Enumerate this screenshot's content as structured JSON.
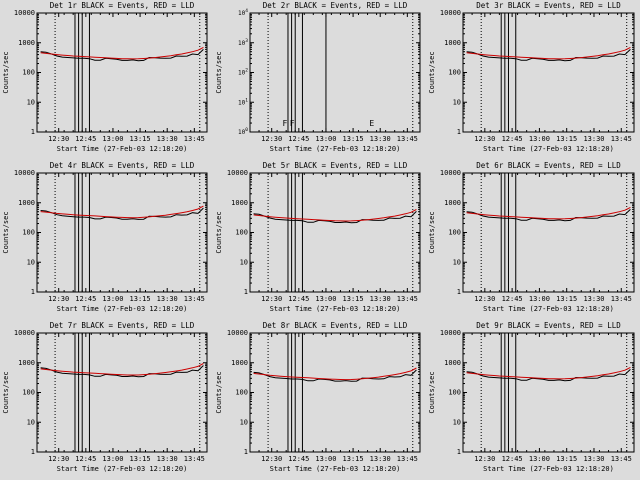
{
  "page": {
    "background": "#dcdcdc",
    "description": "3x3 grid of detector count-rate light curves, log y-axis"
  },
  "chart_data": {
    "type": "line",
    "grid": "3x3",
    "xlabel": "Start Time (27-Feb-03 12:18:20)",
    "ylabel": "Counts/sec",
    "x_domain_minutes": [
      0,
      94
    ],
    "x_ticks": [
      {
        "minute": 12,
        "label": "12:30"
      },
      {
        "minute": 27,
        "label": "12:45"
      },
      {
        "minute": 42,
        "label": "13:00"
      },
      {
        "minute": 57,
        "label": "13:15"
      },
      {
        "minute": 72,
        "label": "13:30"
      },
      {
        "minute": 87,
        "label": "13:45"
      }
    ],
    "x_minor_step_minutes": 5,
    "ylim": [
      1,
      10000
    ],
    "y_log_ticks": [
      1,
      10,
      100,
      1000,
      10000
    ],
    "y_tick_labels": [
      "1",
      "10",
      "100",
      "1000",
      "10000"
    ],
    "legend_note": "BLACK = Events, RED = LLD",
    "colors": {
      "events": "#000000",
      "lld": "#cc0000"
    },
    "solid_vlines_minutes": [
      21,
      23,
      25,
      29
    ],
    "dotted_vlines_minutes": [
      10,
      90
    ],
    "series": {
      "x_minutes": [
        2,
        5,
        8,
        11,
        14,
        17,
        20,
        23,
        26,
        29,
        32,
        35,
        38,
        41,
        44,
        47,
        50,
        53,
        56,
        59,
        62,
        65,
        68,
        71,
        74,
        77,
        80,
        83,
        86,
        89,
        92
      ],
      "black_events": [
        500,
        480,
        420,
        360,
        330,
        320,
        310,
        300,
        300,
        290,
        260,
        260,
        300,
        290,
        280,
        255,
        255,
        265,
        250,
        255,
        320,
        315,
        305,
        300,
        305,
        360,
        350,
        355,
        420,
        400,
        600
      ],
      "red_lld": [
        460,
        440,
        420,
        400,
        385,
        372,
        360,
        350,
        342,
        335,
        328,
        320,
        312,
        305,
        298,
        292,
        288,
        286,
        288,
        295,
        305,
        318,
        332,
        348,
        368,
        392,
        420,
        455,
        500,
        560,
        700
      ]
    },
    "subplots": [
      {
        "id": "det-1r",
        "title": "Det 1r BLACK = Events, RED = LLD",
        "scale": 1.0
      },
      {
        "id": "det-2r",
        "title": "Det 2r BLACK = Events, RED = LLD",
        "empty": true,
        "y_tick_exponents": [
          "0",
          "1",
          "2",
          "3",
          "4"
        ],
        "solid_vlines_minutes": [
          21,
          23,
          25,
          29,
          42
        ],
        "annotations": [
          {
            "text": "F",
            "minute": 18
          },
          {
            "text": "F",
            "minute": 22
          },
          {
            "text": "E",
            "minute": 66
          }
        ]
      },
      {
        "id": "det-3r",
        "title": "Det 3r BLACK = Events, RED = LLD",
        "scale": 1.0
      },
      {
        "id": "det-4r",
        "title": "Det 4r BLACK = Events, RED = LLD",
        "scale": 1.1
      },
      {
        "id": "det-5r",
        "title": "Det 5r BLACK = Events, RED = LLD",
        "scale": 0.85
      },
      {
        "id": "det-6r",
        "title": "Det 6r BLACK = Events, RED = LLD",
        "scale": 1.0
      },
      {
        "id": "det-7r",
        "title": "Det 7r BLACK = Events, RED = LLD",
        "scale": 1.35
      },
      {
        "id": "det-8r",
        "title": "Det 8r BLACK = Events, RED = LLD",
        "scale": 0.95
      },
      {
        "id": "det-9r",
        "title": "Det 9r BLACK = Events, RED = LLD",
        "scale": 1.0
      }
    ]
  }
}
